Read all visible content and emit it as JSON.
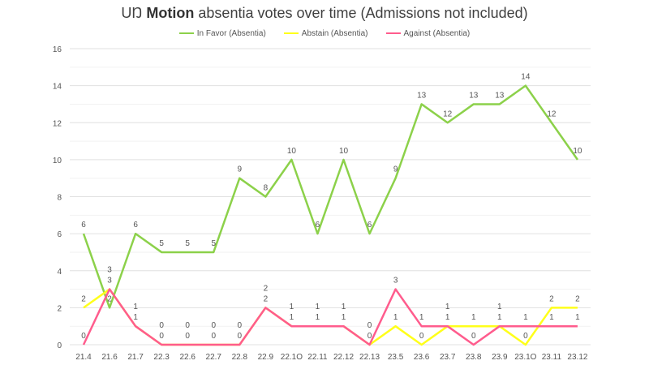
{
  "chart_data": {
    "type": "line",
    "title_prefix": "UŊ",
    "title_bold": "Motion",
    "title_rest": "absentia votes over time (Admissions not included)",
    "categories": [
      "21.4",
      "21.6",
      "21.7",
      "22.3",
      "22.6",
      "22.7",
      "22.8",
      "22.9",
      "22.1O",
      "22.11",
      "22.12",
      "22.13",
      "23.5",
      "23.6",
      "23.7",
      "23.8",
      "23.9",
      "23.1O",
      "23.11",
      "23.12"
    ],
    "ylim": [
      0,
      16
    ],
    "yticks": [
      0,
      2,
      4,
      6,
      8,
      10,
      12,
      14,
      16
    ],
    "grid": true,
    "legend_position": "top",
    "series": [
      {
        "name": "In Favor (Absentia)",
        "color": "#8cd14a",
        "values": [
          6,
          2,
          6,
          5,
          5,
          5,
          9,
          8,
          10,
          6,
          10,
          6,
          9,
          13,
          12,
          13,
          13,
          14,
          12,
          10
        ]
      },
      {
        "name": "Abstain (Absentia)",
        "color": "#ffff1a",
        "values": [
          2,
          3,
          1,
          0,
          0,
          0,
          0,
          2,
          1,
          1,
          1,
          0,
          1,
          0,
          1,
          1,
          1,
          0,
          2,
          2
        ]
      },
      {
        "name": "Against (Absentia)",
        "color": "#ff5c8d",
        "values": [
          0,
          3,
          1,
          0,
          0,
          0,
          0,
          2,
          1,
          1,
          1,
          0,
          3,
          1,
          1,
          0,
          1,
          1,
          1,
          1
        ]
      }
    ]
  }
}
